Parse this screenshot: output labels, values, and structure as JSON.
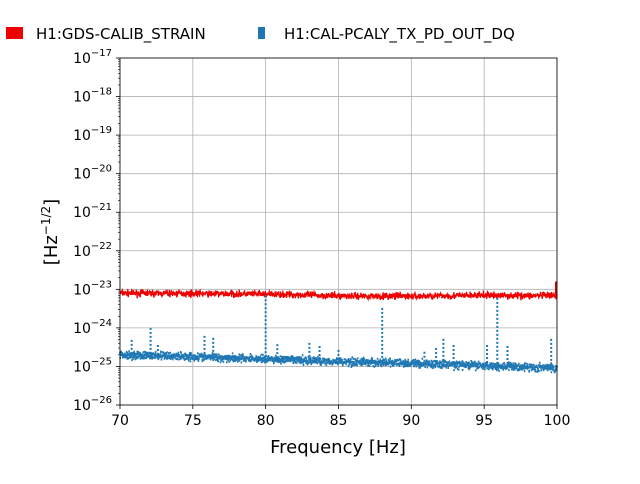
{
  "chart_data": {
    "type": "line",
    "title": "",
    "xlabel": "Frequency [Hz]",
    "ylabel": "[Hz",
    "ylabel_exponent": "−1/2",
    "ylabel_close": "]",
    "xlim": [
      70,
      100
    ],
    "ylim": [
      1e-26,
      1e-17
    ],
    "yscale": "log",
    "grid": true,
    "legend_placement": "top, outside, horizontal",
    "x_ticks": [
      70,
      75,
      80,
      85,
      90,
      95,
      100
    ],
    "x_tick_labels": [
      "70",
      "75",
      "80",
      "85",
      "90",
      "95",
      "100"
    ],
    "y_ticks": [
      {
        "base": "10",
        "exp": "−26"
      },
      {
        "base": "10",
        "exp": "−25"
      },
      {
        "base": "10",
        "exp": "−24"
      },
      {
        "base": "10",
        "exp": "−23"
      },
      {
        "base": "10",
        "exp": "−22"
      },
      {
        "base": "10",
        "exp": "−21"
      },
      {
        "base": "10",
        "exp": "−20"
      },
      {
        "base": "10",
        "exp": "−19"
      },
      {
        "base": "10",
        "exp": "−18"
      },
      {
        "base": "10",
        "exp": "−17"
      }
    ],
    "series": [
      {
        "name": "H1:GDS-CALIB_STRAIN",
        "color": "#ee0000",
        "style": "line",
        "baseline": {
          "x": [
            70,
            80,
            85,
            90,
            95,
            100
          ],
          "y": [
            8e-24,
            7.5e-24,
            6.8e-24,
            6.6e-24,
            7e-24,
            6.8e-24
          ]
        },
        "spikes": [
          {
            "x": 100,
            "y": 1.6e-23
          }
        ]
      },
      {
        "name": "H1:CAL-PCALY_TX_PD_OUT_DQ",
        "color": "#1f77b4",
        "style": "dotted",
        "baseline": {
          "x": [
            70,
            75,
            80,
            85,
            90,
            95,
            100
          ],
          "y": [
            2e-25,
            1.8e-25,
            1.55e-25,
            1.35e-25,
            1.2e-25,
            1.05e-25,
            9e-26
          ]
        },
        "spikes": [
          {
            "x": 70.8,
            "y": 4.9e-25
          },
          {
            "x": 72.1,
            "y": 1e-24
          },
          {
            "x": 72.6,
            "y": 3.6e-25
          },
          {
            "x": 75.8,
            "y": 6.2e-25
          },
          {
            "x": 76.4,
            "y": 5.5e-25
          },
          {
            "x": 80.0,
            "y": 7e-24
          },
          {
            "x": 80.8,
            "y": 3.8e-25
          },
          {
            "x": 83.0,
            "y": 4.1e-25
          },
          {
            "x": 83.7,
            "y": 3.4e-25
          },
          {
            "x": 85.0,
            "y": 2.7e-25
          },
          {
            "x": 88.0,
            "y": 3.3e-24
          },
          {
            "x": 90.9,
            "y": 2.4e-25
          },
          {
            "x": 91.7,
            "y": 3e-25
          },
          {
            "x": 92.2,
            "y": 5.2e-25
          },
          {
            "x": 92.9,
            "y": 3.6e-25
          },
          {
            "x": 95.2,
            "y": 3.6e-25
          },
          {
            "x": 95.9,
            "y": 6e-24
          },
          {
            "x": 96.6,
            "y": 3.4e-25
          },
          {
            "x": 99.6,
            "y": 5.2e-25
          }
        ]
      }
    ]
  }
}
